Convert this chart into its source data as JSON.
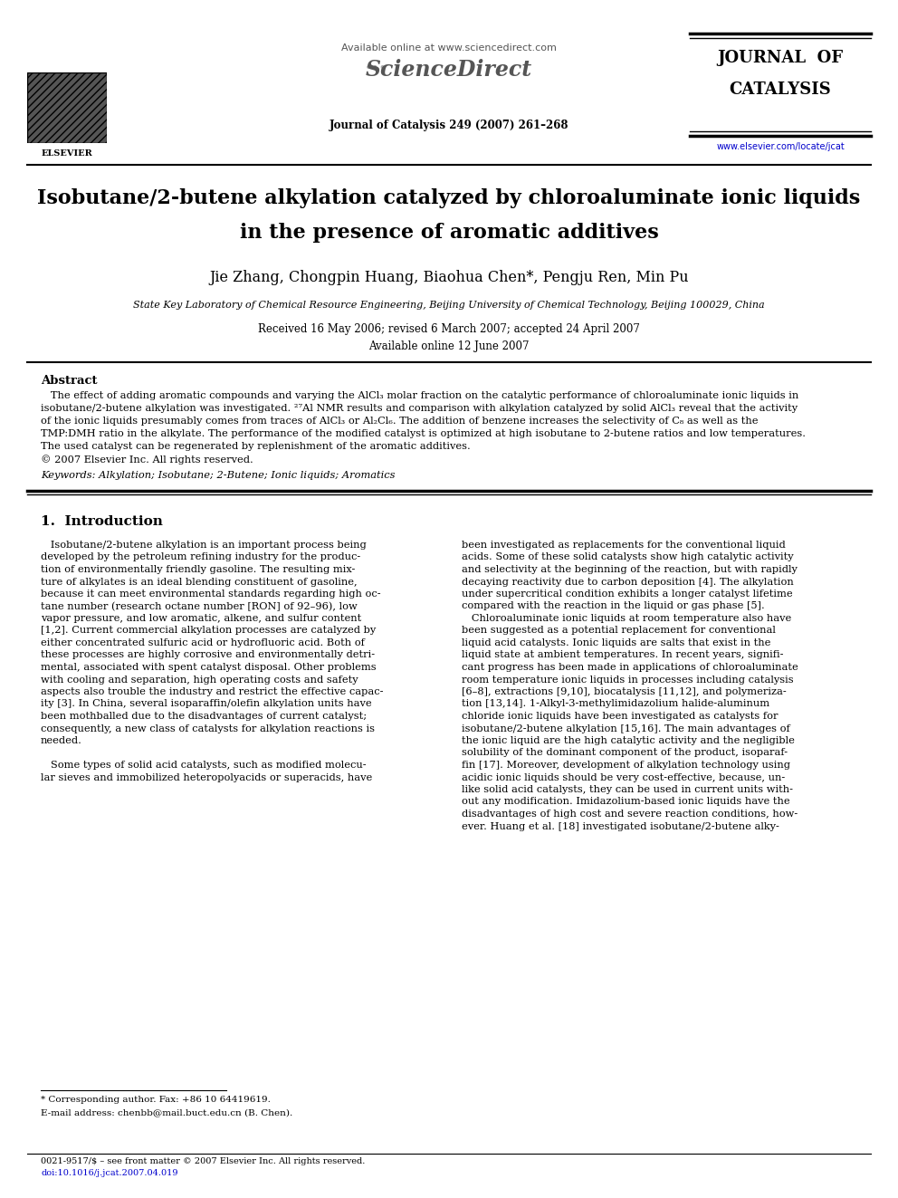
{
  "page_width": 9.92,
  "page_height": 13.23,
  "bg_color": "#ffffff",
  "header": {
    "available_online": "Available online at www.sciencedirect.com",
    "journal_info": "Journal of Catalysis 249 (2007) 261–268",
    "journal_name_line1": "JOURNAL  OF",
    "journal_name_line2": "CATALYSIS",
    "elsevier_text": "ELSEVIER",
    "website": "www.elsevier.com/locate/jcat",
    "sciencedirect_text": "ScienceDirect"
  },
  "title_line1": "Isobutane/2-butene alkylation catalyzed by chloroaluminate ionic liquids",
  "title_line2": "in the presence of aromatic additives",
  "authors": "Jie Zhang, Chongpin Huang, Biaohua Chen*, Pengju Ren, Min Pu",
  "affiliation": "State Key Laboratory of Chemical Resource Engineering, Beijing University of Chemical Technology, Beijing 100029, China",
  "received": "Received 16 May 2006; revised 6 March 2007; accepted 24 April 2007",
  "available_online_paper": "Available online 12 June 2007",
  "abstract_title": "Abstract",
  "copyright": "© 2007 Elsevier Inc. All rights reserved.",
  "keywords": "Keywords: Alkylation; Isobutane; 2-Butene; Ionic liquids; Aromatics",
  "section1_title": "1.  Introduction",
  "footnote_line1": "* Corresponding author. Fax: +86 10 64419619.",
  "footnote_line2": "E-mail address: chenbb@mail.buct.edu.cn (B. Chen).",
  "footer_line1": "0021-9517/$ – see front matter © 2007 Elsevier Inc. All rights reserved.",
  "footer_line2": "doi:10.1016/j.jcat.2007.04.019",
  "blue_color": "#0000cc",
  "abs_lines": [
    "   The effect of adding aromatic compounds and varying the AlCl₃ molar fraction on the catalytic performance of chloroaluminate ionic liquids in",
    "isobutane/2-butene alkylation was investigated. ²⁷Al NMR results and comparison with alkylation catalyzed by solid AlCl₃ reveal that the activity",
    "of the ionic liquids presumably comes from traces of AlCl₃ or Al₂Cl₆. The addition of benzene increases the selectivity of C₈ as well as the",
    "TMP:DMH ratio in the alkylate. The performance of the modified catalyst is optimized at high isobutane to 2-butene ratios and low temperatures.",
    "The used catalyst can be regenerated by replenishment of the aromatic additives."
  ],
  "col1_lines": [
    "   Isobutane/2-butene alkylation is an important process being",
    "developed by the petroleum refining industry for the produc-",
    "tion of environmentally friendly gasoline. The resulting mix-",
    "ture of alkylates is an ideal blending constituent of gasoline,",
    "because it can meet environmental standards regarding high oc-",
    "tane number (research octane number [RON] of 92–96), low",
    "vapor pressure, and low aromatic, alkene, and sulfur content",
    "[1,2]. Current commercial alkylation processes are catalyzed by",
    "either concentrated sulfuric acid or hydrofluoric acid. Both of",
    "these processes are highly corrosive and environmentally detri-",
    "mental, associated with spent catalyst disposal. Other problems",
    "with cooling and separation, high operating costs and safety",
    "aspects also trouble the industry and restrict the effective capac-",
    "ity [3]. In China, several isoparaffin/olefin alkylation units have",
    "been mothballed due to the disadvantages of current catalyst;",
    "consequently, a new class of catalysts for alkylation reactions is",
    "needed.",
    "",
    "   Some types of solid acid catalysts, such as modified molecu-",
    "lar sieves and immobilized heteropolyacids or superacids, have"
  ],
  "col2_lines": [
    "been investigated as replacements for the conventional liquid",
    "acids. Some of these solid catalysts show high catalytic activity",
    "and selectivity at the beginning of the reaction, but with rapidly",
    "decaying reactivity due to carbon deposition [4]. The alkylation",
    "under supercritical condition exhibits a longer catalyst lifetime",
    "compared with the reaction in the liquid or gas phase [5].",
    "   Chloroaluminate ionic liquids at room temperature also have",
    "been suggested as a potential replacement for conventional",
    "liquid acid catalysts. Ionic liquids are salts that exist in the",
    "liquid state at ambient temperatures. In recent years, signifi-",
    "cant progress has been made in applications of chloroaluminate",
    "room temperature ionic liquids in processes including catalysis",
    "[6–8], extractions [9,10], biocatalysis [11,12], and polymeriza-",
    "tion [13,14]. 1-Alkyl-3-methylimidazolium halide-aluminum",
    "chloride ionic liquids have been investigated as catalysts for",
    "isobutane/2-butene alkylation [15,16]. The main advantages of",
    "the ionic liquid are the high catalytic activity and the negligible",
    "solubility of the dominant component of the product, isoparaf-",
    "fin [17]. Moreover, development of alkylation technology using",
    "acidic ionic liquids should be very cost-effective, because, un-",
    "like solid acid catalysts, they can be used in current units with-",
    "out any modification. Imidazolium-based ionic liquids have the",
    "disadvantages of high cost and severe reaction conditions, how-",
    "ever. Huang et al. [18] investigated isobutane/2-butene alky-"
  ]
}
